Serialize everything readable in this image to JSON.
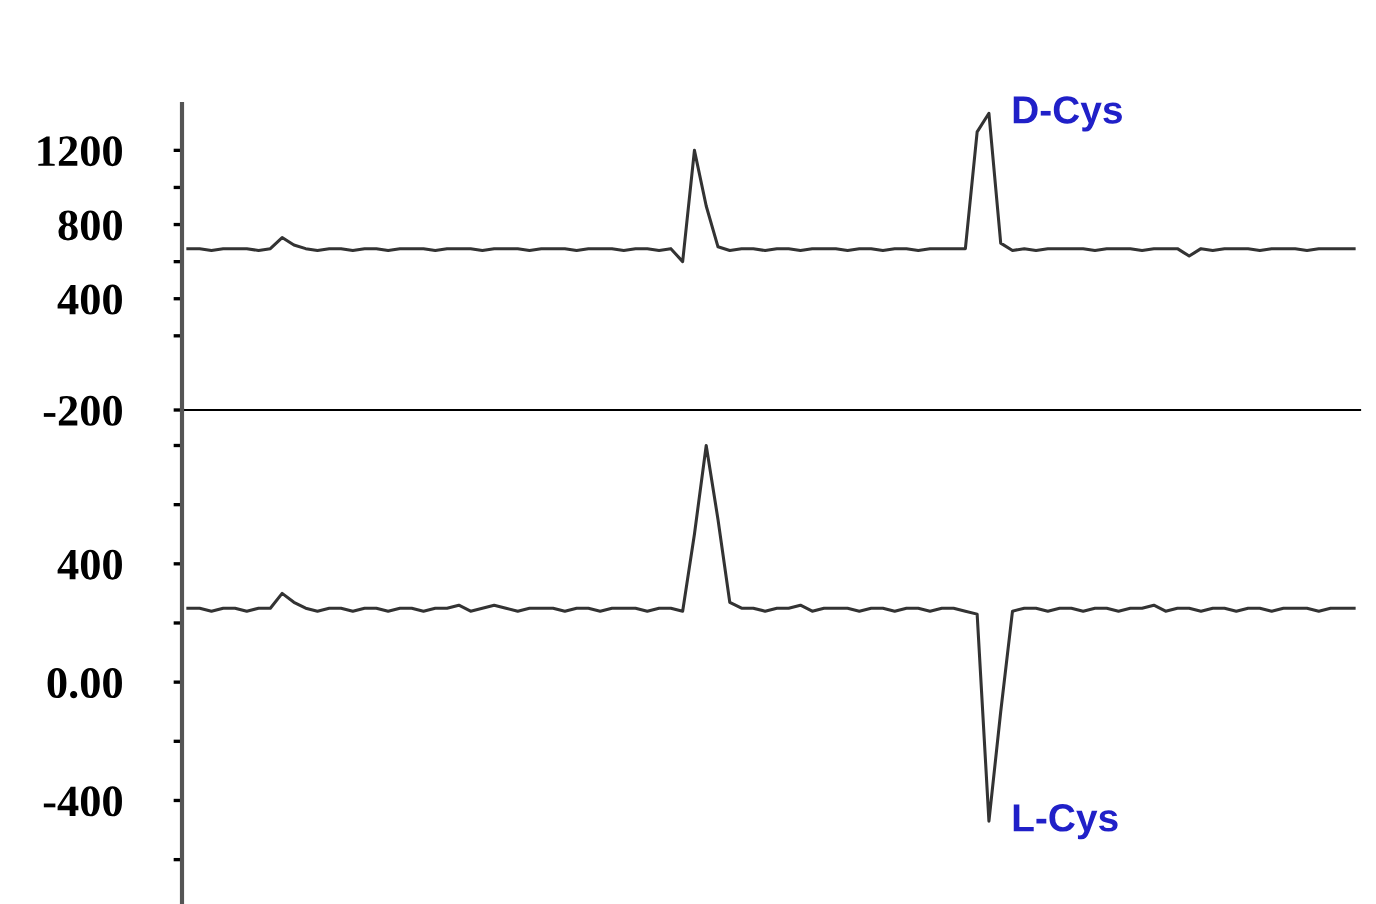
{
  "chart_data": [
    {
      "type": "line",
      "tick_labels": "y",
      "grid": false,
      "ylim": [
        -200,
        1450
      ],
      "yticks": [
        1200,
        {
          "value": 1000,
          "label": null
        },
        800,
        {
          "value": 600,
          "label": null
        },
        400,
        {
          "value": 200,
          "label": null
        },
        -200
      ],
      "categories": [
        null,
        null,
        null,
        null,
        null,
        null,
        null,
        null,
        null,
        null,
        null,
        null,
        null,
        null,
        null,
        null,
        null,
        null,
        null,
        null,
        null,
        null,
        null,
        null,
        null,
        null,
        null,
        null,
        null,
        null,
        null,
        null,
        null,
        null,
        null,
        null,
        null,
        null,
        null,
        null,
        null,
        null,
        null,
        null,
        null,
        null,
        null,
        null,
        null,
        null,
        null,
        null,
        null,
        null,
        null,
        null,
        null,
        null,
        null,
        null,
        null,
        null,
        null,
        null,
        null,
        null,
        null,
        null,
        null,
        null,
        null,
        null,
        null,
        null,
        null,
        null,
        null,
        null,
        null,
        null,
        null,
        null,
        null,
        null,
        null,
        null,
        null,
        null,
        null,
        null,
        null,
        null,
        null,
        null,
        null,
        null,
        null,
        null,
        null,
        null
      ],
      "series": [
        {
          "color": "#333333",
          "values": [
            670,
            670,
            660,
            670,
            670,
            670,
            660,
            670,
            730,
            690,
            670,
            660,
            670,
            670,
            660,
            670,
            670,
            660,
            670,
            670,
            670,
            660,
            670,
            670,
            670,
            660,
            670,
            670,
            670,
            660,
            670,
            670,
            670,
            660,
            670,
            670,
            670,
            660,
            670,
            670,
            660,
            670,
            600,
            1200,
            900,
            680,
            660,
            670,
            670,
            660,
            670,
            670,
            660,
            670,
            670,
            670,
            660,
            670,
            670,
            660,
            670,
            670,
            660,
            670,
            670,
            670,
            670,
            1300,
            1400,
            700,
            660,
            670,
            660,
            670,
            670,
            670,
            670,
            660,
            670,
            670,
            670,
            660,
            670,
            670,
            670,
            630,
            670,
            660,
            670,
            670,
            670,
            660,
            670,
            670,
            670,
            660,
            670,
            670,
            670,
            670
          ]
        }
      ],
      "annotations": [
        "D-Cys"
      ]
    },
    {
      "type": "line",
      "tick_labels": "y",
      "grid": false,
      "ylim": [
        -750,
        920
      ],
      "yticks": [
        {
          "value": 800,
          "label": null
        },
        {
          "value": 600,
          "label": null
        },
        400,
        {
          "value": 200,
          "label": null
        },
        {
          "value": 0,
          "label": "0.00"
        },
        {
          "value": -200,
          "label": null
        },
        -400,
        {
          "value": -600,
          "label": null
        }
      ],
      "categories": [
        null,
        null,
        null,
        null,
        null,
        null,
        null,
        null,
        null,
        null,
        null,
        null,
        null,
        null,
        null,
        null,
        null,
        null,
        null,
        null,
        null,
        null,
        null,
        null,
        null,
        null,
        null,
        null,
        null,
        null,
        null,
        null,
        null,
        null,
        null,
        null,
        null,
        null,
        null,
        null,
        null,
        null,
        null,
        null,
        null,
        null,
        null,
        null,
        null,
        null,
        null,
        null,
        null,
        null,
        null,
        null,
        null,
        null,
        null,
        null,
        null,
        null,
        null,
        null,
        null,
        null,
        null,
        null,
        null,
        null,
        null,
        null,
        null,
        null,
        null,
        null,
        null,
        null,
        null,
        null,
        null,
        null,
        null,
        null,
        null,
        null,
        null,
        null,
        null,
        null,
        null,
        null,
        null,
        null,
        null,
        null,
        null,
        null,
        null,
        null
      ],
      "series": [
        {
          "color": "#333333",
          "values": [
            250,
            250,
            240,
            250,
            250,
            240,
            250,
            250,
            300,
            270,
            250,
            240,
            250,
            250,
            240,
            250,
            250,
            240,
            250,
            250,
            240,
            250,
            250,
            260,
            240,
            250,
            260,
            250,
            240,
            250,
            250,
            250,
            240,
            250,
            250,
            240,
            250,
            250,
            250,
            240,
            250,
            250,
            240,
            500,
            800,
            550,
            270,
            250,
            250,
            240,
            250,
            250,
            260,
            240,
            250,
            250,
            250,
            240,
            250,
            250,
            240,
            250,
            250,
            240,
            250,
            250,
            240,
            230,
            -470,
            -100,
            240,
            250,
            250,
            240,
            250,
            250,
            240,
            250,
            250,
            240,
            250,
            250,
            260,
            240,
            250,
            250,
            240,
            250,
            250,
            240,
            250,
            250,
            240,
            250,
            250,
            250,
            240,
            250,
            250,
            250
          ]
        }
      ],
      "annotations": [
        "L-Cys"
      ]
    }
  ]
}
